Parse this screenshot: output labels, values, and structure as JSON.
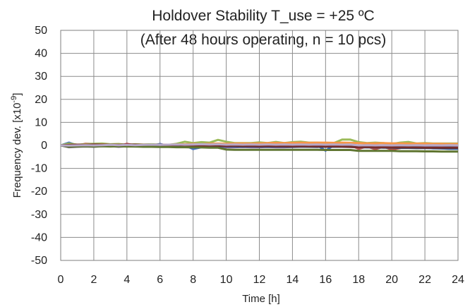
{
  "chart_data": {
    "type": "line",
    "title": "Holdover Stability T_use = +25 ºC",
    "subtitle": "(After 48 hours operating, n = 10 pcs)",
    "xlabel": "Time [h]",
    "ylabel": "Frequency dev.  [x10",
    "ylabel_exp": "-9",
    "ylabel_close": "]",
    "xlim": [
      0,
      24
    ],
    "ylim": [
      -50,
      50
    ],
    "xticks": [
      "0",
      "2",
      "4",
      "6",
      "8",
      "10",
      "12",
      "14",
      "16",
      "18",
      "20",
      "22",
      "24"
    ],
    "yticks": [
      "50",
      "40",
      "30",
      "20",
      "10",
      "0",
      "-10",
      "-20",
      "-30",
      "-40",
      "-50"
    ],
    "grid": true,
    "x": [
      0,
      0.5,
      1,
      1.5,
      2,
      2.5,
      3,
      3.5,
      4,
      4.5,
      5,
      5.5,
      6,
      6.5,
      7,
      7.5,
      8,
      8.5,
      9,
      9.5,
      10,
      10.5,
      11,
      11.5,
      12,
      12.5,
      13,
      13.5,
      14,
      14.5,
      15,
      15.5,
      16,
      16.5,
      17,
      17.5,
      18,
      18.5,
      19,
      19.5,
      20,
      20.5,
      21,
      21.5,
      22,
      22.5,
      23,
      23.5,
      24
    ],
    "series": [
      {
        "color": "#4472C4",
        "values": [
          0,
          1.2,
          0,
          0,
          0.4,
          0.2,
          0,
          0.3,
          0,
          0,
          -0.3,
          0,
          0.6,
          -0.2,
          0,
          0,
          -1.6,
          -0.8,
          -0.5,
          0,
          0,
          0,
          -0.4,
          0,
          0,
          0,
          0,
          0,
          0,
          0,
          0,
          0,
          -2.3,
          0,
          0,
          0,
          0,
          0,
          -0.5,
          0,
          0,
          0,
          0,
          -0.5,
          -1,
          -1.3,
          -1.3,
          -1.5,
          -1.5
        ]
      },
      {
        "color": "#C0504D",
        "values": [
          0,
          -0.5,
          0,
          0.7,
          0.6,
          0.7,
          0,
          -0.3,
          0.7,
          0,
          0,
          0,
          0,
          0,
          0,
          0,
          0.4,
          0,
          0.5,
          0.6,
          0,
          0,
          0,
          0,
          0,
          0.6,
          0.8,
          0,
          0,
          0.7,
          0,
          0,
          0,
          0,
          0,
          0,
          -1.5,
          -0.5,
          -1.7,
          -0.6,
          -1.8,
          -1.2,
          0,
          0,
          -0.7,
          -0.5,
          -0.5,
          -0.7,
          -0.7
        ]
      },
      {
        "color": "#9BBB59",
        "values": [
          0,
          0.8,
          0.3,
          0.5,
          0.7,
          0.8,
          0.5,
          0.6,
          0.2,
          0.5,
          0.4,
          0.5,
          0.3,
          0.2,
          0.7,
          1.6,
          1.0,
          1.4,
          1.2,
          2.4,
          1.6,
          1.0,
          1.0,
          1.0,
          1.3,
          1.0,
          1.5,
          1.0,
          1.4,
          1.6,
          1.2,
          1.2,
          1.0,
          1.0,
          2.5,
          2.5,
          1.4,
          1.0,
          1.2,
          1.0,
          0.6,
          1.2,
          1.5,
          0.8,
          1.0,
          0.8,
          0.8,
          0.8,
          0.8
        ]
      },
      {
        "color": "#8064A2",
        "values": [
          0,
          -0.8,
          -0.6,
          -0.5,
          -0.6,
          -0.4,
          -0.3,
          -0.6,
          -0.4,
          -0.5,
          -0.4,
          -0.4,
          -0.5,
          -0.5,
          -0.3,
          -0.4,
          -0.5,
          -0.3,
          -0.4,
          -0.3,
          -0.8,
          -0.8,
          -0.7,
          -0.8,
          -0.8,
          -0.7,
          -0.8,
          -0.8,
          -0.7,
          -0.6,
          -0.6,
          -0.7,
          -0.4,
          -0.5,
          -0.5,
          -0.5,
          -0.5,
          -0.6,
          -0.6,
          -0.6,
          -0.6,
          -0.6,
          -0.6,
          -0.6,
          -0.6,
          -0.6,
          -0.6,
          -0.6,
          -0.6
        ]
      },
      {
        "color": "#4BACC6",
        "values": [
          0,
          -0.3,
          -0.2,
          -0.1,
          0,
          0.1,
          0,
          0,
          0.1,
          0,
          0,
          0,
          0,
          0,
          0,
          0,
          0,
          0,
          0,
          0,
          0,
          0,
          0,
          0,
          0,
          0,
          0,
          0,
          0,
          0,
          0,
          0,
          0,
          0,
          0,
          0,
          0,
          0,
          0,
          0,
          0,
          0,
          0,
          0,
          0,
          0,
          0,
          0,
          0
        ]
      },
      {
        "color": "#F79646",
        "values": [
          0,
          -0.2,
          0.1,
          0.3,
          0.2,
          0.4,
          0.3,
          0.2,
          0.3,
          0.2,
          0.3,
          0.2,
          0.3,
          0.3,
          0.4,
          0.5,
          0.6,
          0.5,
          0.7,
          0.8,
          0.7,
          0.8,
          0.9,
          0.8,
          0.9,
          1.0,
          1.1,
          1.0,
          1.1,
          1.2,
          1.1,
          1.2,
          1.2,
          1.1,
          1.2,
          1.1,
          1.0,
          0.9,
          0.9,
          1.0,
          0.9,
          0.9,
          0.8,
          0.8,
          0.8,
          0.7,
          0.7,
          0.6,
          0.6
        ]
      },
      {
        "color": "#2C4D75",
        "values": [
          0,
          -0.4,
          -0.3,
          -0.2,
          -0.2,
          -0.1,
          -0.2,
          -0.1,
          -0.2,
          -0.1,
          -0.2,
          -0.2,
          -0.3,
          -0.2,
          -0.3,
          -0.3,
          -0.4,
          -0.3,
          -0.4,
          -0.3,
          -0.4,
          -0.4,
          -0.5,
          -0.4,
          -0.5,
          -0.5,
          -0.5,
          -0.5,
          -0.6,
          -0.5,
          -0.6,
          -0.6,
          -0.6,
          -0.6,
          -0.6,
          -0.7,
          -0.8,
          -0.9,
          -0.9,
          -1.0,
          -1.0,
          -1.1,
          -1.1,
          -1.2,
          -1.2,
          -1.2,
          -1.3,
          -1.3,
          -1.3
        ]
      },
      {
        "color": "#772C2A",
        "values": [
          0,
          0.2,
          0.3,
          0.2,
          0.4,
          0.3,
          0.3,
          0.2,
          0.4,
          0.3,
          0.2,
          0.3,
          0.2,
          0.1,
          0.2,
          0.1,
          0.0,
          -0.1,
          0.0,
          -0.1,
          -0.2,
          -0.1,
          -0.2,
          -0.2,
          -0.3,
          -0.2,
          -0.3,
          -0.3,
          -0.4,
          -0.3,
          -0.4,
          -0.4,
          -0.5,
          -0.4,
          -0.5,
          -0.6,
          -0.8,
          -0.7,
          -0.8,
          -0.8,
          -0.9,
          -0.8,
          -0.9,
          -0.9,
          -1.0,
          -1.0,
          -1.0,
          -1.0,
          -1.0
        ]
      },
      {
        "color": "#5F7530",
        "values": [
          0,
          -0.6,
          -0.5,
          -0.4,
          -0.5,
          -0.4,
          -0.5,
          -0.4,
          -0.5,
          -0.5,
          -0.6,
          -0.6,
          -0.7,
          -0.7,
          -0.8,
          -0.8,
          -0.9,
          -0.9,
          -1.0,
          -1.0,
          -1.8,
          -1.9,
          -1.9,
          -1.9,
          -1.9,
          -1.9,
          -1.9,
          -1.9,
          -1.9,
          -1.9,
          -1.9,
          -1.9,
          -2.0,
          -2.0,
          -2.0,
          -2.0,
          -2.4,
          -2.4,
          -2.4,
          -2.4,
          -2.4,
          -2.5,
          -2.5,
          -2.5,
          -2.6,
          -2.6,
          -2.7,
          -2.7,
          -2.7
        ]
      },
      {
        "color": "#B7A8C9",
        "values": [
          0,
          -0.1,
          0.0,
          0.1,
          0.0,
          0.1,
          0.2,
          0.1,
          0.2,
          0.1,
          0.2,
          0.3,
          0.2,
          0.3,
          0.4,
          0.3,
          0.4,
          0.5,
          0.4,
          0.5,
          0.3,
          0.4,
          0.3,
          0.4,
          0.3,
          0.4,
          0.3,
          0.4,
          0.3,
          0.4,
          0.3,
          0.4,
          0.3,
          0.4,
          0.3,
          0.4,
          0.0,
          0.1,
          0.0,
          0.1,
          0.0,
          0.1,
          0.0,
          0.1,
          0.0,
          0.1,
          0.0,
          0.1,
          0.0
        ]
      }
    ]
  }
}
